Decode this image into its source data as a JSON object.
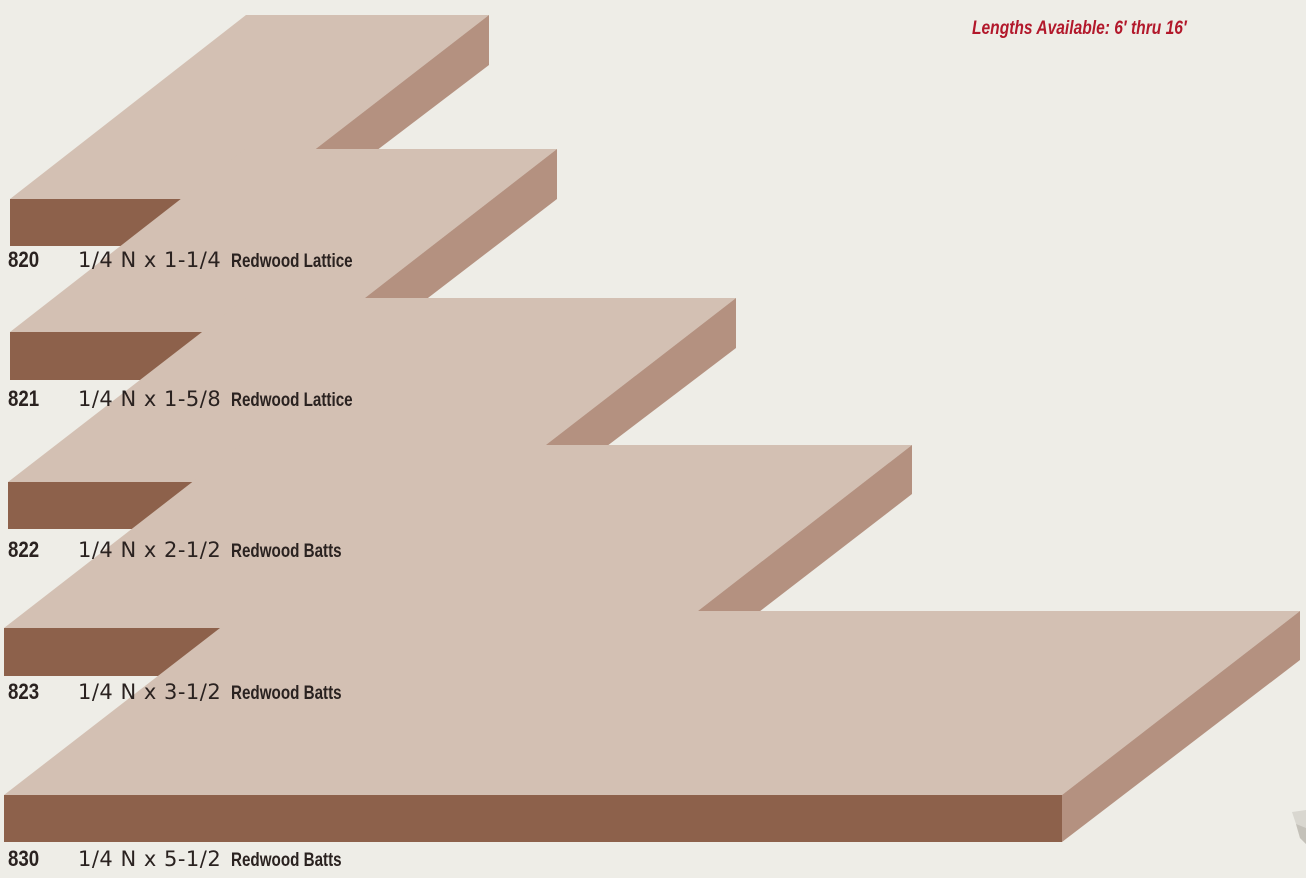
{
  "lengths_note": "Lengths Available:  6′ thru 16′",
  "colors": {
    "background": "#eeede7",
    "board_top": "#d3c0b3",
    "board_side": "#b49180",
    "board_front": "#8d614b",
    "note_text": "#b2182b"
  },
  "products": [
    {
      "code": "820",
      "dimension": "1/4 N x 1-1/4",
      "description": "Redwood Lattice"
    },
    {
      "code": "821",
      "dimension": "1/4 N x 1-5/8",
      "description": "Redwood Lattice"
    },
    {
      "code": "822",
      "dimension": "1/4 N x 2-1/2",
      "description": "Redwood Batts"
    },
    {
      "code": "823",
      "dimension": "1/4 N x 3-1/2",
      "description": "Redwood Batts"
    },
    {
      "code": "830",
      "dimension": "1/4 N x 5-1/2",
      "description": "Redwood Batts"
    }
  ]
}
